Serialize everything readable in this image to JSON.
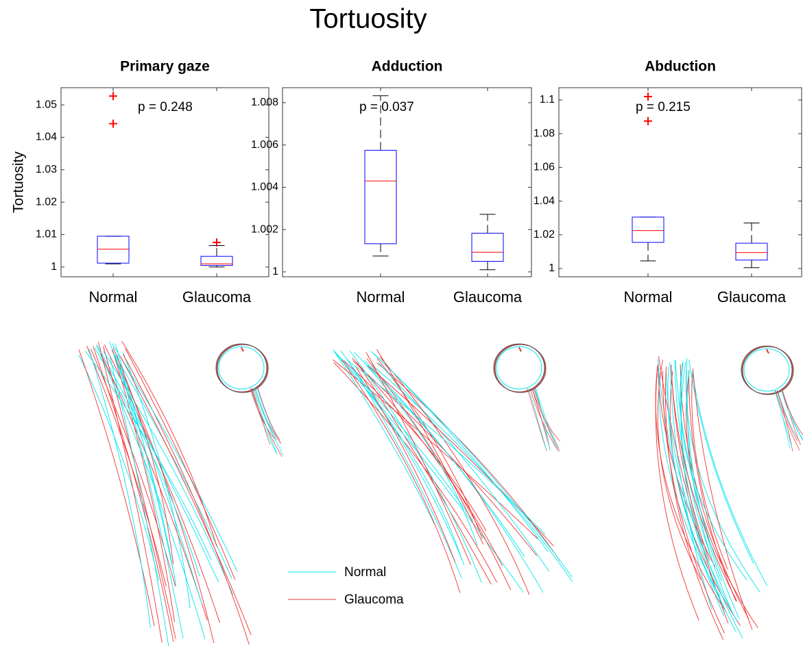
{
  "title": "Tortuosity",
  "legend": {
    "items": [
      {
        "name": "Normal",
        "color": "#00e5ee"
      },
      {
        "name": "Glaucoma",
        "color": "#f03030"
      }
    ]
  },
  "chart_data": [
    {
      "type": "box",
      "title": "Primary gaze",
      "ylabel": "Tortuosity",
      "annotation": "p = 0.248",
      "categories": [
        "Normal",
        "Glaucoma"
      ],
      "boxes": [
        {
          "whislo": 1.001,
          "q1": 1.0012,
          "med": 1.0055,
          "q3": 1.0095,
          "whishi": 1.0095,
          "fliers": [
            1.0527,
            1.0442
          ]
        },
        {
          "whislo": 1.0,
          "q1": 1.0005,
          "med": 1.001,
          "q3": 1.0033,
          "whishi": 1.0066,
          "fliers": [
            1.0076
          ]
        }
      ],
      "ylim": [
        0.997,
        1.0553
      ],
      "yticks": [
        1,
        1.01,
        1.02,
        1.03,
        1.04,
        1.05
      ],
      "box_color": "#0000ff",
      "median_color": "#ff0000",
      "whisker_color": "#000000",
      "flier_color": "#ff0000"
    },
    {
      "type": "box",
      "title": "Adduction",
      "annotation": "p = 0.037",
      "categories": [
        "Normal",
        "Glaucoma"
      ],
      "boxes": [
        {
          "whislo": 1.00075,
          "q1": 1.00133,
          "med": 1.0043,
          "q3": 1.00575,
          "whishi": 1.00833,
          "fliers": []
        },
        {
          "whislo": 1.0001,
          "q1": 1.0005,
          "med": 1.00093,
          "q3": 1.00183,
          "whishi": 1.00272,
          "fliers": []
        }
      ],
      "ylim": [
        0.99977,
        1.00871
      ],
      "yticks": [
        1,
        1.002,
        1.004,
        1.006,
        1.008
      ],
      "box_color": "#0000ff",
      "median_color": "#ff0000",
      "whisker_color": "#000000",
      "flier_color": "#ff0000"
    },
    {
      "type": "box",
      "title": "Abduction",
      "annotation": "p = 0.215",
      "categories": [
        "Normal",
        "Glaucoma"
      ],
      "boxes": [
        {
          "whislo": 1.0045,
          "q1": 1.0155,
          "med": 1.0225,
          "q3": 1.0305,
          "whishi": 1.0305,
          "fliers": [
            1.102,
            1.0875
          ]
        },
        {
          "whislo": 1.0005,
          "q1": 1.005,
          "med": 1.0095,
          "q3": 1.015,
          "whishi": 1.027,
          "fliers": []
        }
      ],
      "ylim": [
        0.9951,
        1.1073
      ],
      "yticks": [
        1,
        1.02,
        1.04,
        1.06,
        1.08,
        1.1
      ],
      "box_color": "#0000ff",
      "median_color": "#ff0000",
      "whisker_color": "#000000",
      "flier_color": "#ff0000"
    }
  ]
}
